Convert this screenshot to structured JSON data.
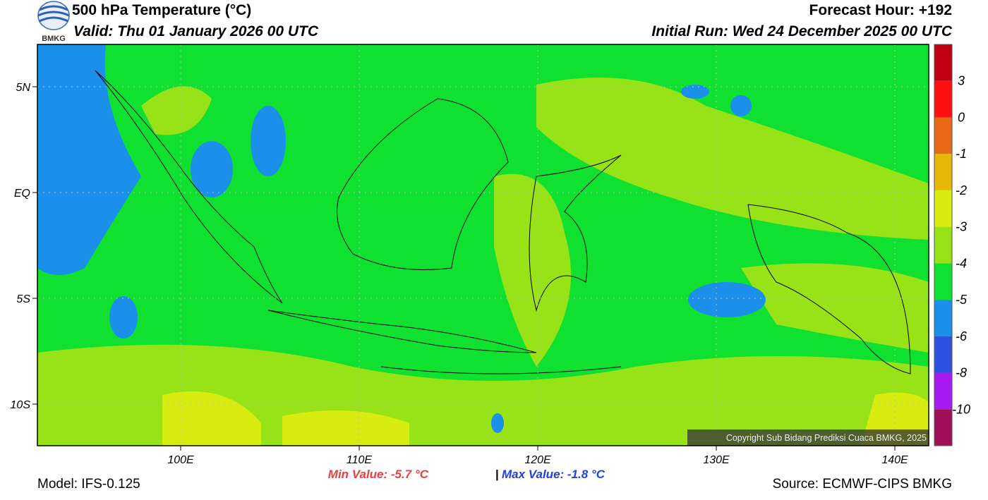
{
  "logo": {
    "text": "BMKG"
  },
  "header": {
    "title": "500 hPa Temperature (°C)",
    "valid": "Valid: Thu 01 January 2026 00 UTC",
    "forecast_hour": "Forecast Hour: +192",
    "initial_run": "Initial Run: Wed 24 December 2025 00 UTC"
  },
  "map": {
    "lat_labels": [
      "5N",
      "EQ",
      "5S",
      "10S"
    ],
    "lon_labels": [
      "100E",
      "110E",
      "120E",
      "130E",
      "140E"
    ],
    "copyright": "Copyright Sub Bidang Prediksi Cuaca BMKG, 2025"
  },
  "colorbar": {
    "levels": [
      3,
      0,
      -1,
      -2,
      -3,
      -4,
      -5,
      -6,
      -8,
      -10
    ],
    "colors": [
      "#c00010",
      "#ff1010",
      "#e86818",
      "#e8b808",
      "#d8ec10",
      "#98e218",
      "#10e030",
      "#1a90ea",
      "#2c50e0",
      "#a818f0",
      "#a01058"
    ]
  },
  "footer": {
    "min_value": "Min Value: -5.7 °C",
    "separator": "|",
    "max_value": "Max Value: -1.8 °C",
    "model": "Model: IFS-0.125",
    "source": "Source: ECMWF-CIPS BMKG"
  }
}
